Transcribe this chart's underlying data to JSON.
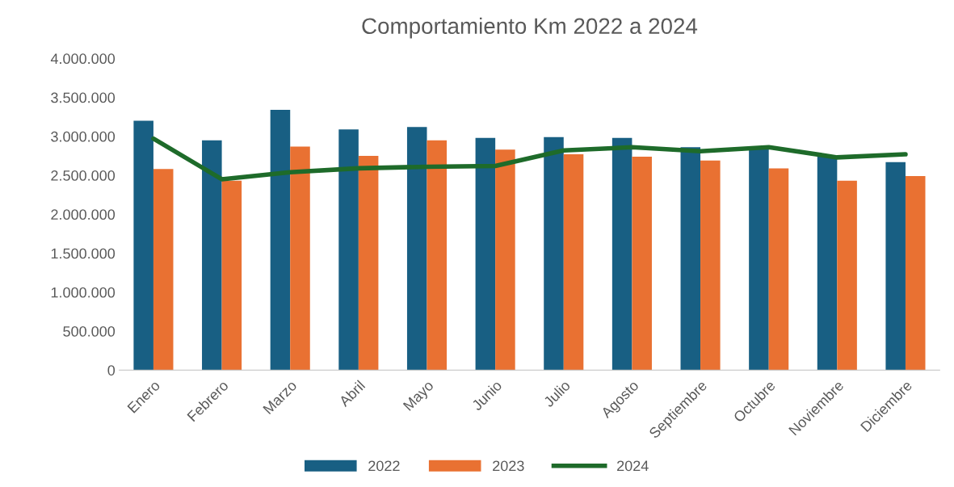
{
  "chart_data": {
    "type": "bar",
    "title": "Comportamiento Km 2022 a 2024",
    "categories": [
      "Enero",
      "Febrero",
      "Marzo",
      "Abril",
      "Mayo",
      "Junio",
      "Julio",
      "Agosto",
      "Septiembre",
      "Octubre",
      "Noviembre",
      "Diciembre"
    ],
    "series": [
      {
        "name": "2022",
        "color": "#185f83",
        "values": [
          3200000,
          2950000,
          3340000,
          3090000,
          3120000,
          2980000,
          2990000,
          2980000,
          2860000,
          2840000,
          2740000,
          2670000
        ]
      },
      {
        "name": "2023",
        "color": "#e97132",
        "values": [
          2580000,
          2430000,
          2870000,
          2750000,
          2950000,
          2830000,
          2770000,
          2740000,
          2690000,
          2590000,
          2430000,
          2490000
        ]
      },
      {
        "name": "2024",
        "type": "line",
        "color": "#1e6b2a",
        "values": [
          2970000,
          2450000,
          2540000,
          2590000,
          2610000,
          2620000,
          2820000,
          2860000,
          2810000,
          2860000,
          2730000,
          2770000
        ]
      }
    ],
    "ylim": [
      0,
      4000000
    ],
    "yticks": [
      {
        "value": 0,
        "label": "0"
      },
      {
        "value": 500000,
        "label": "500.000"
      },
      {
        "value": 1000000,
        "label": "1.000.000"
      },
      {
        "value": 1500000,
        "label": "1.500.000"
      },
      {
        "value": 2000000,
        "label": "2.000.000"
      },
      {
        "value": 2500000,
        "label": "2.500.000"
      },
      {
        "value": 3000000,
        "label": "3.000.000"
      },
      {
        "value": 3500000,
        "label": "3.500.000"
      },
      {
        "value": 4000000,
        "label": "4.000.000"
      }
    ],
    "grid": false,
    "legend": "bottom",
    "marker": "none",
    "line_style": "solid"
  }
}
